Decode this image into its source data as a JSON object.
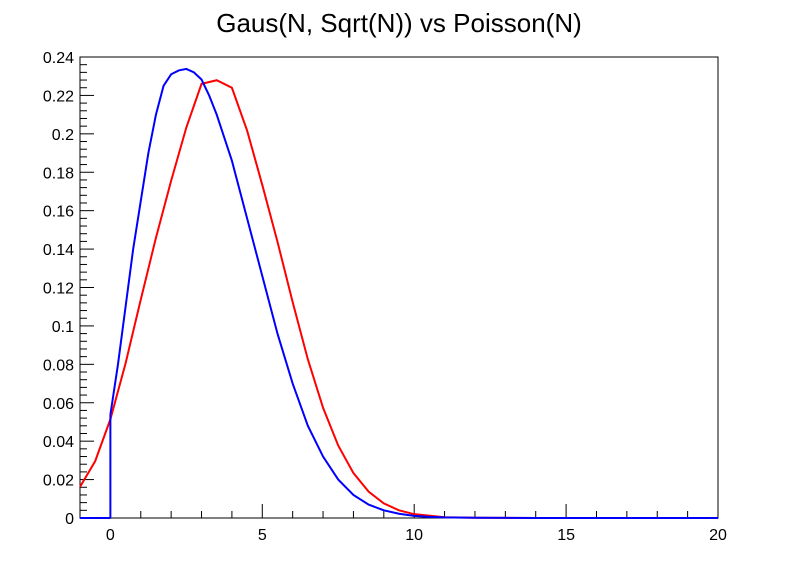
{
  "chart_data": {
    "type": "line",
    "title": "Gaus(N, Sqrt(N)) vs Poisson(N)",
    "xlabel": "",
    "ylabel": "",
    "xlim": [
      -1,
      20
    ],
    "ylim": [
      0,
      0.24
    ],
    "x_ticks": [
      0,
      5,
      10,
      15,
      20
    ],
    "y_ticks": [
      0,
      0.02,
      0.04,
      0.06,
      0.08,
      0.1,
      0.12,
      0.14,
      0.16,
      0.18,
      0.2,
      0.22,
      0.24
    ],
    "x_tick_labels": [
      "0",
      "5",
      "10",
      "15",
      "20"
    ],
    "y_tick_labels": [
      "0",
      "0.02",
      "0.04",
      "0.06",
      "0.08",
      "0.1",
      "0.12",
      "0.14",
      "0.16",
      "0.18",
      "0.2",
      "0.22",
      "0.24"
    ],
    "grid": false,
    "series": [
      {
        "color": "#ff0000",
        "x": [
          -1,
          -0.5,
          0,
          0.5,
          1,
          1.5,
          2,
          2.5,
          3,
          3.5,
          4,
          4.5,
          5,
          5.5,
          6,
          6.5,
          7,
          7.5,
          8,
          8.5,
          9,
          9.5,
          10,
          11,
          12,
          14,
          16,
          18,
          20
        ],
        "y": [
          0.0162,
          0.0296,
          0.0514,
          0.0805,
          0.1137,
          0.1459,
          0.1756,
          0.2033,
          0.226,
          0.2279,
          0.224,
          0.2017,
          0.1734,
          0.1438,
          0.1124,
          0.0826,
          0.0574,
          0.0377,
          0.0234,
          0.0137,
          0.0076,
          0.004,
          0.002,
          0.0004,
          0.0001,
          0,
          0,
          0,
          0
        ]
      },
      {
        "color": "#0000ff",
        "x": [
          0,
          0.25,
          0.5,
          0.75,
          1,
          1.25,
          1.5,
          1.75,
          2,
          2.25,
          2.5,
          2.75,
          3,
          3.25,
          3.5,
          4,
          4.5,
          5,
          5.5,
          6,
          6.5,
          7,
          7.5,
          8,
          8.5,
          9,
          9.5,
          10,
          10.5,
          11,
          12,
          14,
          16,
          18,
          20
        ],
        "y": [
          0.0538,
          0.08,
          0.11,
          0.14,
          0.165,
          0.19,
          0.21,
          0.225,
          0.231,
          0.233,
          0.2338,
          0.232,
          0.2283,
          0.22,
          0.21,
          0.186,
          0.156,
          0.126,
          0.096,
          0.07,
          0.048,
          0.032,
          0.02,
          0.012,
          0.007,
          0.004,
          0.0022,
          0.0011,
          0.0006,
          0.0003,
          0.0001,
          0,
          0,
          0,
          0
        ],
        "vertical_drop_at_x": 0
      }
    ]
  }
}
